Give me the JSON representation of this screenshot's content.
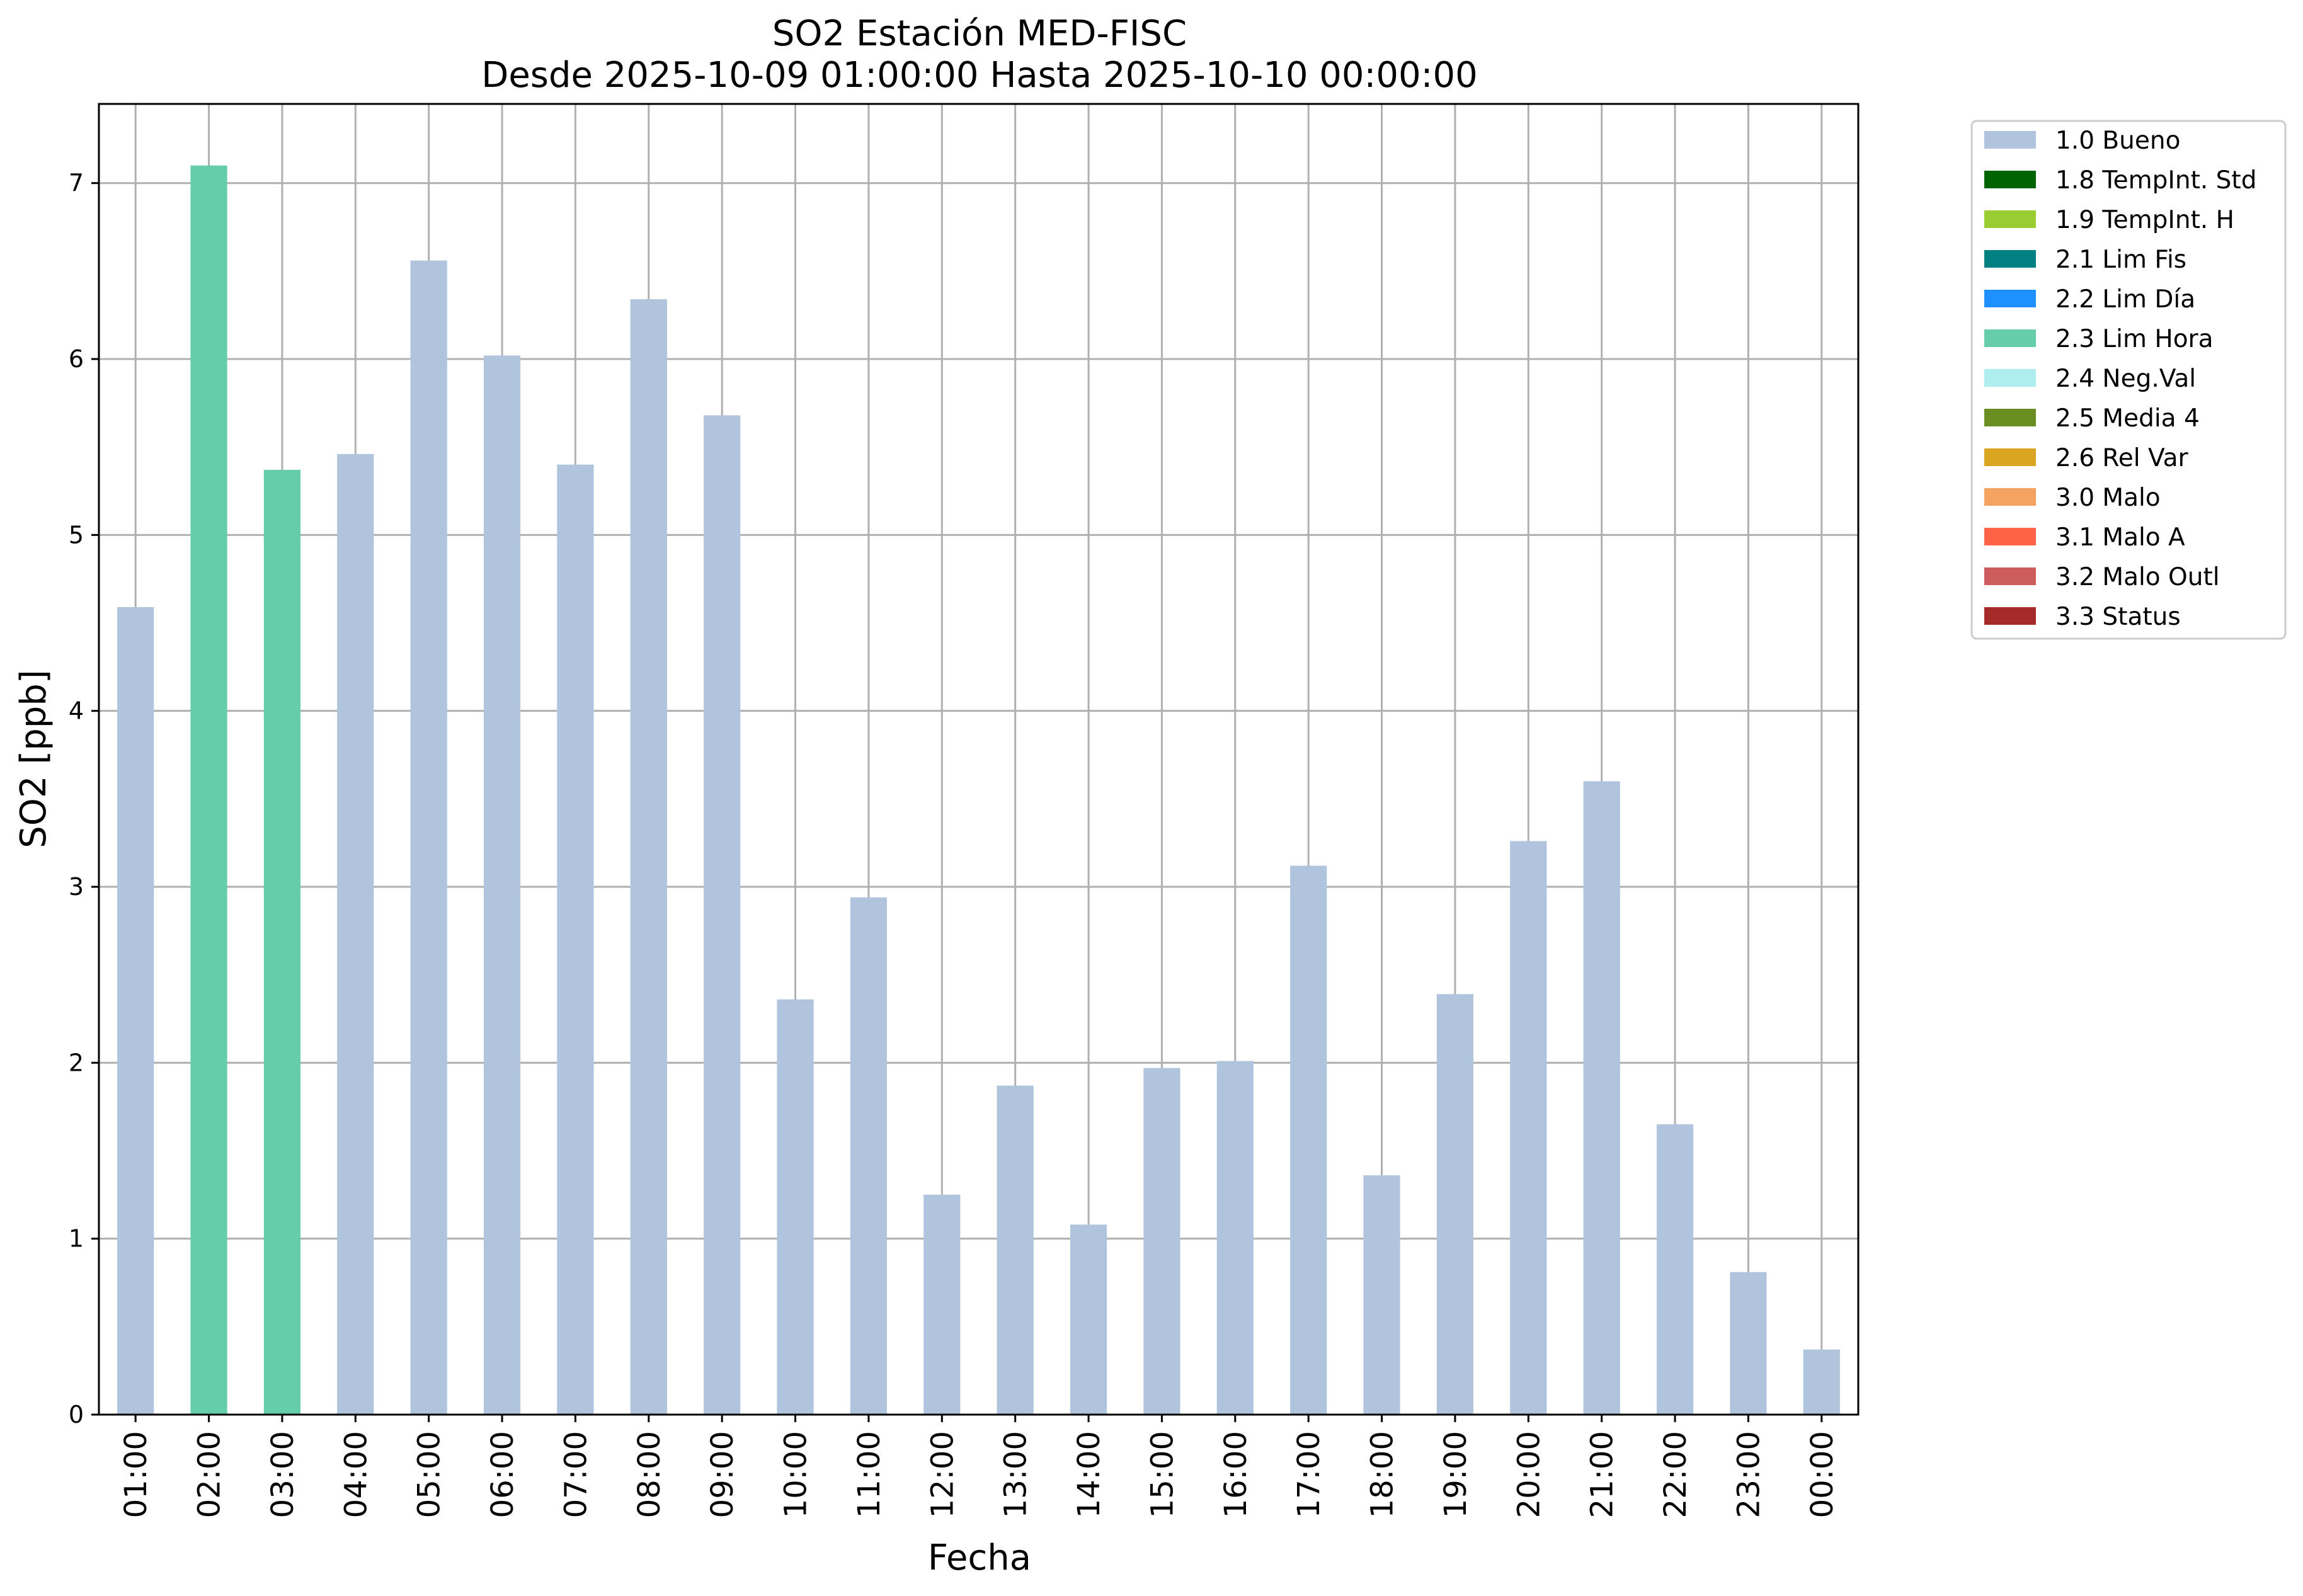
{
  "chart_data": {
    "type": "bar",
    "title": "SO2 Estación MED-FISC",
    "subtitle": "Desde 2025-10-09 01:00:00 Hasta 2025-10-10 00:00:00",
    "xlabel": "Fecha",
    "ylabel": "SO2 [ppb]",
    "ylim": [
      0,
      7.45
    ],
    "yticks": [
      "0",
      "1",
      "2",
      "3",
      "4",
      "5",
      "6",
      "7"
    ],
    "grid": true,
    "legend_placement": "outside-upper-right",
    "categories": [
      "01:00",
      "02:00",
      "03:00",
      "04:00",
      "05:00",
      "06:00",
      "07:00",
      "08:00",
      "09:00",
      "10:00",
      "11:00",
      "12:00",
      "13:00",
      "14:00",
      "15:00",
      "16:00",
      "17:00",
      "18:00",
      "19:00",
      "20:00",
      "21:00",
      "22:00",
      "23:00",
      "00:00"
    ],
    "values": [
      4.59,
      7.1,
      5.37,
      5.46,
      6.56,
      6.02,
      5.4,
      6.34,
      5.68,
      2.36,
      2.94,
      1.25,
      1.87,
      1.08,
      1.97,
      2.01,
      3.12,
      1.36,
      2.39,
      3.26,
      3.6,
      1.65,
      0.81,
      0.37
    ],
    "flags": [
      "1.0 Bueno",
      "2.3 Lim Hora",
      "2.3 Lim Hora",
      "1.0 Bueno",
      "1.0 Bueno",
      "1.0 Bueno",
      "1.0 Bueno",
      "1.0 Bueno",
      "1.0 Bueno",
      "1.0 Bueno",
      "1.0 Bueno",
      "1.0 Bueno",
      "1.0 Bueno",
      "1.0 Bueno",
      "1.0 Bueno",
      "1.0 Bueno",
      "1.0 Bueno",
      "1.0 Bueno",
      "1.0 Bueno",
      "1.0 Bueno",
      "1.0 Bueno",
      "1.0 Bueno",
      "1.0 Bueno",
      "1.0 Bueno"
    ],
    "legend": [
      {
        "label": "1.0 Bueno",
        "color": "#b0c4de"
      },
      {
        "label": "1.8 TempInt. Std",
        "color": "#006400"
      },
      {
        "label": "1.9 TempInt. H",
        "color": "#9acd32"
      },
      {
        "label": "2.1 Lim Fis",
        "color": "#008080"
      },
      {
        "label": "2.2 Lim Día",
        "color": "#1e90ff"
      },
      {
        "label": "2.3 Lim Hora",
        "color": "#66cdaa"
      },
      {
        "label": "2.4 Neg.Val",
        "color": "#afeeee"
      },
      {
        "label": "2.5 Media 4",
        "color": "#6b8e23"
      },
      {
        "label": "2.6 Rel Var",
        "color": "#daa520"
      },
      {
        "label": "3.0 Malo",
        "color": "#f4a460"
      },
      {
        "label": "3.1 Malo A",
        "color": "#ff6347"
      },
      {
        "label": "3.2 Malo Outl",
        "color": "#cd5c5c"
      },
      {
        "label": "3.3 Status",
        "color": "#a52a2a"
      }
    ]
  }
}
